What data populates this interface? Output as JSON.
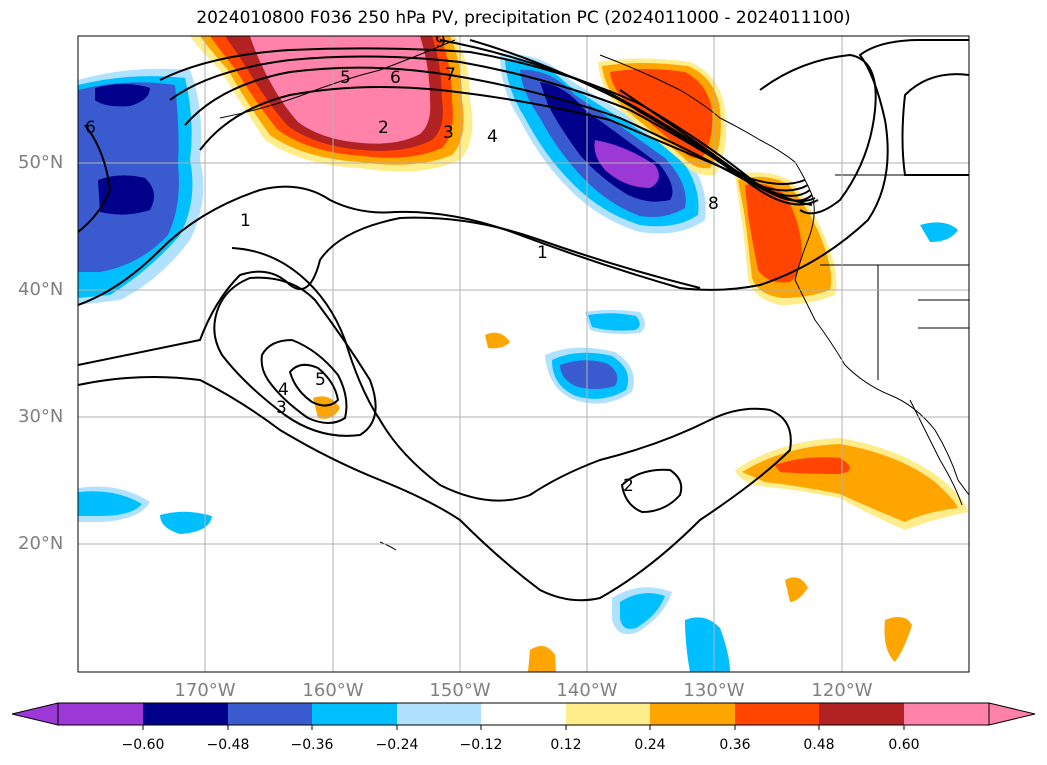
{
  "title": "2024010800 F036 250 hPa PV, precipitation PC (2024011000 - 2024011100)",
  "map": {
    "lat_labels": [
      "50°N",
      "40°N",
      "30°N",
      "20°N"
    ],
    "lon_labels": [
      "170°W",
      "160°W",
      "150°W",
      "140°W",
      "130°W",
      "120°W"
    ],
    "contour_labels": [
      "1",
      "1",
      "2",
      "2",
      "3",
      "3",
      "4",
      "4",
      "5",
      "5",
      "6",
      "6",
      "7",
      "8",
      "9"
    ]
  },
  "colorbar": {
    "ticks": [
      "−0.60",
      "−0.48",
      "−0.36",
      "−0.24",
      "−0.12",
      "0.12",
      "0.24",
      "0.36",
      "0.48",
      "0.60"
    ],
    "colors": [
      "#9b38d6",
      "#00008b",
      "#3a5bd0",
      "#00bfff",
      "#b0e2ff",
      "#ffffff",
      "#ffec8b",
      "#ffa500",
      "#ff4500",
      "#b22222",
      "#ff82ab"
    ]
  },
  "colors": {
    "purple": "#9b38d6",
    "navy": "#00008b",
    "royal": "#3a5bd0",
    "sky": "#00bfff",
    "pale_blue": "#b0e2ff",
    "yellow": "#ffec8b",
    "orange": "#ffa500",
    "red_orange": "#ff4500",
    "firebrick": "#b22222",
    "pink": "#ff82ab"
  }
}
